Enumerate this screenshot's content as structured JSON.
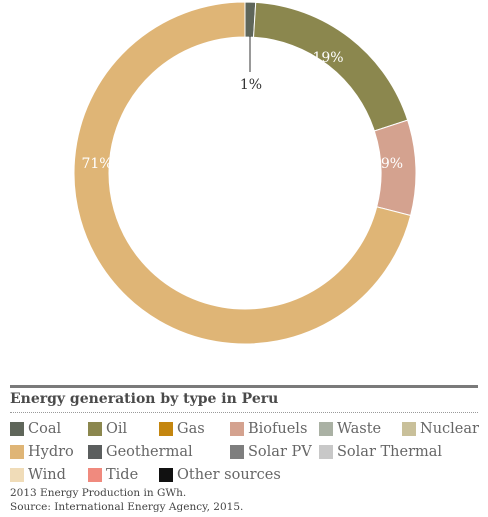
{
  "chart_data": {
    "type": "pie",
    "donut": true,
    "title": "Energy generation by type in Peru",
    "slices": [
      {
        "name": "Coal",
        "value": 1,
        "label": "1%",
        "color": "#5f665a"
      },
      {
        "name": "Oil",
        "value": 19,
        "label": "19%",
        "color": "#8b874e"
      },
      {
        "name": "Biofuels",
        "value": 9,
        "label": "9%",
        "color": "#d4a28f"
      },
      {
        "name": "Hydro",
        "value": 71,
        "label": "71%",
        "color": "#dfb576"
      }
    ],
    "legend": [
      {
        "name": "Coal",
        "color": "#5f665a"
      },
      {
        "name": "Oil",
        "color": "#8b874e"
      },
      {
        "name": "Gas",
        "color": "#c4860f"
      },
      {
        "name": "Biofuels",
        "color": "#d4a28f"
      },
      {
        "name": "Waste",
        "color": "#aab1a4"
      },
      {
        "name": "Nuclear",
        "color": "#c9c09a"
      },
      {
        "name": "Hydro",
        "color": "#dfb576"
      },
      {
        "name": "Geothermal",
        "color": "#5b5e5e"
      },
      {
        "name": "Solar PV",
        "color": "#7e7e7e"
      },
      {
        "name": "Solar Thermal",
        "color": "#c8c8c8"
      },
      {
        "name": "Wind",
        "color": "#f0dcb8"
      },
      {
        "name": "Tide",
        "color": "#f08a7e"
      },
      {
        "name": "Other sources",
        "color": "#111111"
      }
    ],
    "notes": [
      "2013 Energy Production in GWh.",
      "Source: International Energy Agency, 2015."
    ]
  }
}
